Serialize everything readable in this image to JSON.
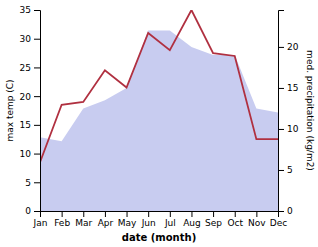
{
  "chart_data": {
    "type": "line",
    "categories": [
      "Jan",
      "Feb",
      "Mar",
      "Apr",
      "May",
      "Jun",
      "Jul",
      "Aug",
      "Sep",
      "Oct",
      "Nov",
      "Dec"
    ],
    "xlabel": "date (month)",
    "ylabel": "max temp (C)",
    "y2label": "med. precipitation (kg/m2)",
    "series": [
      {
        "type": "area",
        "axis": "y2",
        "color": "#c8ccf0",
        "values": [
          9.0,
          8.5,
          12.5,
          13.5,
          15.0,
          22.0,
          22.0,
          20.0,
          19.0,
          19.0,
          12.5,
          12.0
        ]
      },
      {
        "type": "line",
        "color": "#b03040",
        "values": [
          8.5,
          18.5,
          19.0,
          24.5,
          21.5,
          31.0,
          28.0,
          35.0,
          27.5,
          27.0,
          12.5,
          12.5
        ]
      }
    ],
    "ylim": [
      0,
      35
    ],
    "yticks": [
      0,
      5,
      10,
      15,
      20,
      25,
      30,
      35
    ],
    "y2lim": [
      0,
      24.5
    ],
    "y2ticks": [
      0,
      5,
      10,
      15,
      20
    ],
    "grid": false
  }
}
